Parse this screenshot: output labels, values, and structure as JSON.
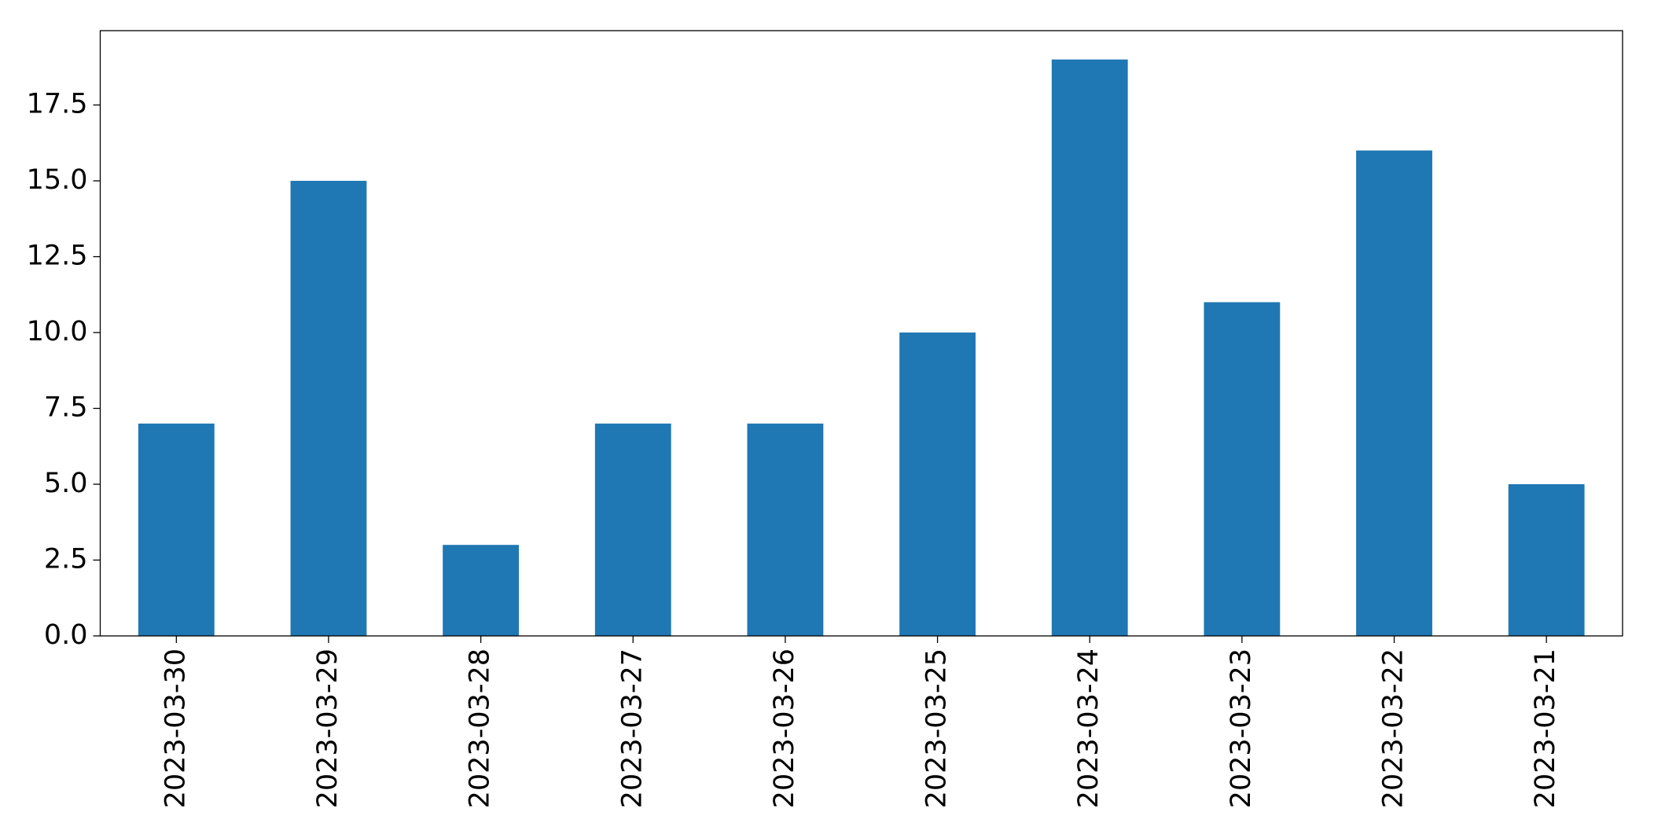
{
  "chart_data": {
    "type": "bar",
    "categories": [
      "2023-03-30",
      "2023-03-29",
      "2023-03-28",
      "2023-03-27",
      "2023-03-26",
      "2023-03-25",
      "2023-03-24",
      "2023-03-23",
      "2023-03-22",
      "2023-03-21"
    ],
    "values": [
      7,
      15,
      3,
      7,
      7,
      10,
      19,
      11,
      16,
      5
    ],
    "color": "#1f77b4",
    "ylim": [
      0,
      19.95
    ],
    "yticks": [
      {
        "value": 0,
        "label": "0.0"
      },
      2.5,
      {
        "value": 5,
        "label": "5.0"
      },
      7.5,
      {
        "value": 10,
        "label": "10.0"
      },
      12.5,
      {
        "value": 15,
        "label": "15.0"
      },
      17.5
    ],
    "grid": false
  }
}
